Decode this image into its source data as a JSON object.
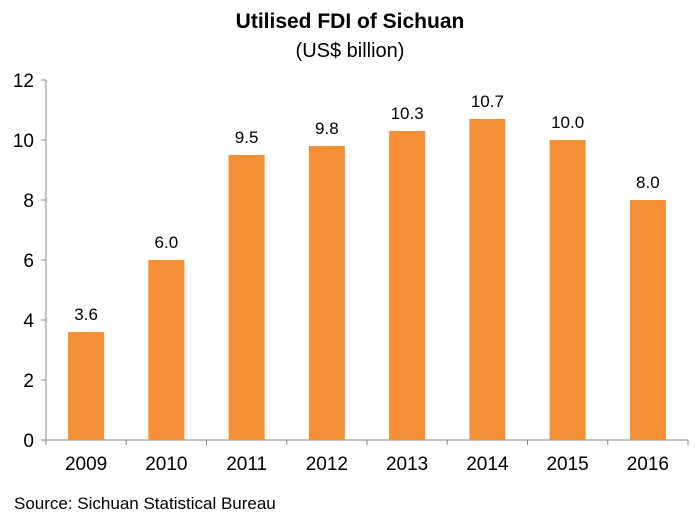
{
  "chart_data": {
    "type": "bar",
    "title": "Utilised FDI of Sichuan",
    "subtitle": "(US$ billion)",
    "categories": [
      "2009",
      "2010",
      "2011",
      "2012",
      "2013",
      "2014",
      "2015",
      "2016"
    ],
    "values": [
      3.6,
      6.0,
      9.5,
      9.8,
      10.3,
      10.7,
      10.0,
      8.0
    ],
    "data_labels": [
      "3.6",
      "6.0",
      "9.5",
      "9.8",
      "10.3",
      "10.7",
      "10.0",
      "8.0"
    ],
    "ylim": [
      0,
      12
    ],
    "yticks": [
      0,
      2,
      4,
      6,
      8,
      10,
      12
    ],
    "grid": false,
    "legend": "none",
    "bar_color": "#F58F36",
    "source": "Source: Sichuan Statistical Bureau"
  }
}
